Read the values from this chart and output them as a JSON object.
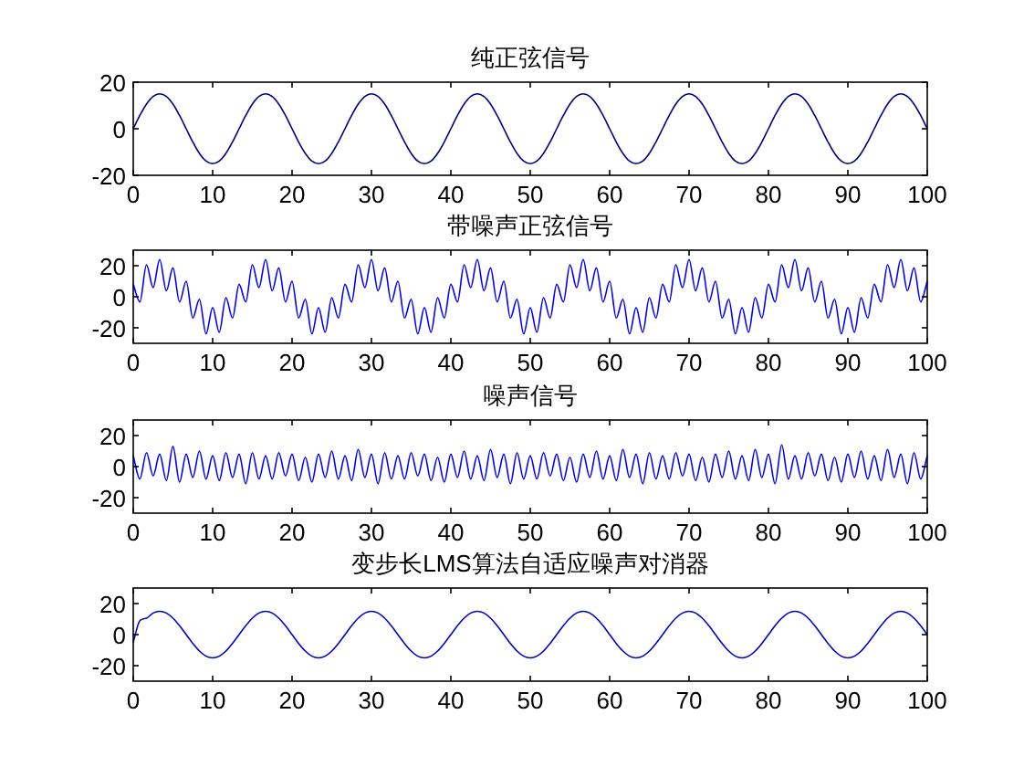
{
  "chart_data": [
    {
      "type": "line",
      "title": "纯正弦信号",
      "xlim": [
        0,
        100
      ],
      "ylim": [
        -20,
        20
      ],
      "xticks": [
        0,
        10,
        20,
        30,
        40,
        50,
        60,
        70,
        80,
        90,
        100
      ],
      "yticks": [
        -20,
        0,
        20
      ],
      "x": [
        0,
        0.83,
        1.67,
        2.5,
        3.33,
        4.17,
        5,
        5.83,
        6.67,
        7.5,
        8.33,
        9.17,
        10,
        10.83,
        11.67,
        12.5,
        13.33,
        14.17,
        15,
        15.83,
        16.67,
        17.5,
        18.33,
        19.17,
        20,
        20.83,
        21.67,
        22.5,
        23.33,
        24.17,
        25,
        25.83,
        26.67,
        27.5,
        28.33,
        29.17,
        30,
        30.83,
        31.67,
        32.5,
        33.33,
        34.17,
        35,
        35.83,
        36.67,
        37.5,
        38.33,
        39.17,
        40,
        40.83,
        41.67,
        42.5,
        43.33,
        44.17,
        45,
        45.83,
        46.67,
        47.5,
        48.33,
        49.17,
        50,
        50.83,
        51.67,
        52.5,
        53.33,
        54.17,
        55,
        55.83,
        56.67,
        57.5,
        58.33,
        59.17,
        60,
        60.83,
        61.67,
        62.5,
        63.33,
        64.17,
        65,
        65.83,
        66.67,
        67.5,
        68.33,
        69.17,
        70,
        70.83,
        71.67,
        72.5,
        73.33,
        74.17,
        75,
        75.83,
        76.67,
        77.5,
        78.33,
        79.17,
        80,
        80.83,
        81.67,
        82.5,
        83.33,
        84.17,
        85,
        85.83,
        86.67,
        87.5,
        88.33,
        89.17,
        90,
        90.83,
        91.67,
        92.5,
        93.33,
        94.17,
        95,
        95.83,
        96.67,
        97.5,
        98.33,
        99.17,
        100
      ],
      "series": [
        {
          "color": "#000080",
          "values": [
            0,
            5.7,
            10.6,
            13.9,
            15,
            13.9,
            10.6,
            5.7,
            0,
            -5.7,
            -10.6,
            -13.9,
            -15,
            -13.9,
            -10.6,
            -5.7,
            0,
            5.7,
            10.6,
            13.9,
            15,
            13.9,
            10.6,
            5.7,
            0,
            -5.7,
            -10.6,
            -13.9,
            -15,
            -13.9,
            -10.6,
            -5.7,
            0,
            5.7,
            10.6,
            13.9,
            15,
            13.9,
            10.6,
            5.7,
            0,
            -5.7,
            -10.6,
            -13.9,
            -15,
            -13.9,
            -10.6,
            -5.7,
            0,
            5.7,
            10.6,
            13.9,
            15,
            13.9,
            10.6,
            5.7,
            0,
            -5.7,
            -10.6,
            -13.9,
            -15,
            -13.9,
            -10.6,
            -5.7,
            0,
            5.7,
            10.6,
            13.9,
            15,
            13.9,
            10.6,
            5.7,
            0,
            -5.7,
            -10.6,
            -13.9,
            -15,
            -13.9,
            -10.6,
            -5.7,
            0,
            5.7,
            10.6,
            13.9,
            15,
            13.9,
            10.6,
            5.7,
            0,
            -5.7,
            -10.6,
            -13.9,
            -15,
            -13.9,
            -10.6,
            -5.7,
            0,
            5.7,
            10.6,
            13.9,
            15,
            13.9,
            10.6,
            5.7,
            0,
            -5.7,
            -10.6,
            -13.9,
            -15,
            -13.9,
            -10.6,
            -5.7,
            0,
            5.7,
            10.6,
            13.9,
            15,
            13.9,
            10.6,
            5.7,
            0
          ]
        }
      ]
    },
    {
      "type": "line",
      "title": "带噪声正弦信号",
      "xlim": [
        0,
        100
      ],
      "ylim": [
        -30,
        30
      ],
      "xticks": [
        0,
        10,
        20,
        30,
        40,
        50,
        60,
        70,
        80,
        90,
        100
      ],
      "yticks": [
        -20,
        0,
        20
      ],
      "x": [
        0,
        0.83,
        1.67,
        2.5,
        3.33,
        4.17,
        5,
        5.83,
        6.67,
        7.5,
        8.33,
        9.17,
        10,
        10.83,
        11.67,
        12.5,
        13.33,
        14.17,
        15,
        15.83,
        16.67,
        17.5,
        18.33,
        19.17,
        20,
        20.83,
        21.67,
        22.5,
        23.33,
        24.17,
        25,
        25.83,
        26.67,
        27.5,
        28.33,
        29.17,
        30,
        30.83,
        31.67,
        32.5,
        33.33,
        34.17,
        35,
        35.83,
        36.67,
        37.5,
        38.33,
        39.17,
        40,
        40.83,
        41.67,
        42.5,
        43.33,
        44.17,
        45,
        45.83,
        46.67,
        47.5,
        48.33,
        49.17,
        50,
        50.83,
        51.67,
        52.5,
        53.33,
        54.17,
        55,
        55.83,
        56.67,
        57.5,
        58.33,
        59.17,
        60,
        60.83,
        61.67,
        62.5,
        63.33,
        64.17,
        65,
        65.83,
        66.67,
        67.5,
        68.33,
        69.17,
        70,
        70.83,
        71.67,
        72.5,
        73.33,
        74.17,
        75,
        75.83,
        76.67,
        77.5,
        78.33,
        79.17,
        80,
        80.83,
        81.67,
        82.5,
        83.33,
        84.17,
        85,
        85.83,
        86.67,
        87.5,
        88.33,
        89.17,
        90,
        90.83,
        91.67,
        92.5,
        93.33,
        94.17,
        95,
        95.83,
        96.67,
        97.5,
        98.33,
        99.17,
        100
      ],
      "series": [
        {
          "color": "#0000ff",
          "values": [
            8,
            -3.3,
            20.6,
            5.9,
            24,
            3.9,
            18.6,
            -3.3,
            10,
            -13.7,
            -1.6,
            -23.9,
            -7,
            -22.9,
            -0.6,
            -13.7,
            8,
            -3.3,
            20.6,
            5.9,
            24,
            3.9,
            18.6,
            -3.3,
            10,
            -13.7,
            -1.6,
            -23.9,
            -7,
            -22.9,
            -0.6,
            -13.7,
            8,
            -3.3,
            20.6,
            5.9,
            24,
            3.9,
            18.6,
            -3.3,
            10,
            -13.7,
            -1.6,
            -23.9,
            -7,
            -22.9,
            -0.6,
            -13.7,
            8,
            -3.3,
            20.6,
            5.9,
            24,
            3.9,
            18.6,
            -3.3,
            10,
            -13.7,
            -1.6,
            -23.9,
            -7,
            -22.9,
            -0.6,
            -13.7,
            8,
            -3.3,
            20.6,
            5.9,
            24,
            3.9,
            18.6,
            -3.3,
            10,
            -13.7,
            -1.6,
            -23.9,
            -7,
            -22.9,
            -0.6,
            -13.7,
            8,
            -3.3,
            20.6,
            5.9,
            24,
            3.9,
            18.6,
            -3.3,
            10,
            -13.7,
            -1.6,
            -23.9,
            -7,
            -22.9,
            -0.6,
            -13.7,
            8,
            -3.3,
            20.6,
            5.9,
            24,
            3.9,
            18.6,
            -3.3,
            10,
            -13.7,
            -1.6,
            -23.9,
            -7,
            -22.9,
            -0.6,
            -13.7,
            8,
            -3.3,
            20.6,
            5.9,
            24,
            3.9,
            18.6,
            -3.3,
            10
          ]
        }
      ]
    },
    {
      "type": "line",
      "title": "噪声信号",
      "xlim": [
        0,
        100
      ],
      "ylim": [
        -30,
        30
      ],
      "xticks": [
        0,
        10,
        20,
        30,
        40,
        50,
        60,
        70,
        80,
        90,
        100
      ],
      "yticks": [
        -20,
        0,
        20
      ],
      "x": [
        0,
        0.83,
        1.67,
        2.5,
        3.33,
        4.17,
        5,
        5.83,
        6.67,
        7.5,
        8.33,
        9.17,
        10,
        10.83,
        11.67,
        12.5,
        13.33,
        14.17,
        15,
        15.83,
        16.67,
        17.5,
        18.33,
        19.17,
        20,
        20.83,
        21.67,
        22.5,
        23.33,
        24.17,
        25,
        25.83,
        26.67,
        27.5,
        28.33,
        29.17,
        30,
        30.83,
        31.67,
        32.5,
        33.33,
        34.17,
        35,
        35.83,
        36.67,
        37.5,
        38.33,
        39.17,
        40,
        40.83,
        41.67,
        42.5,
        43.33,
        44.17,
        45,
        45.83,
        46.67,
        47.5,
        48.33,
        49.17,
        50,
        50.83,
        51.67,
        52.5,
        53.33,
        54.17,
        55,
        55.83,
        56.67,
        57.5,
        58.33,
        59.17,
        60,
        60.83,
        61.67,
        62.5,
        63.33,
        64.17,
        65,
        65.83,
        66.67,
        67.5,
        68.33,
        69.17,
        70,
        70.83,
        71.67,
        72.5,
        73.33,
        74.17,
        75,
        75.83,
        76.67,
        77.5,
        78.33,
        79.17,
        80,
        80.83,
        81.67,
        82.5,
        83.33,
        84.17,
        85,
        85.83,
        86.67,
        87.5,
        88.33,
        89.17,
        90,
        90.83,
        91.67,
        92.5,
        93.33,
        94.17,
        95,
        95.83,
        96.67,
        97.5,
        98.33,
        99.17,
        100
      ],
      "series": [
        {
          "color": "#0000ff",
          "values": [
            7,
            -8,
            9,
            -6,
            8,
            -9,
            13,
            -10,
            8,
            -7,
            10,
            -8,
            7,
            -9,
            9,
            -7,
            8,
            -11,
            9,
            -8,
            7,
            -8,
            9,
            -6,
            8,
            -9,
            6,
            -10,
            8,
            -7,
            10,
            -8,
            7,
            -9,
            11,
            -7,
            8,
            -11,
            9,
            -8,
            7,
            -8,
            9,
            -6,
            8,
            -9,
            6,
            -10,
            8,
            -7,
            10,
            -8,
            7,
            -9,
            11,
            -7,
            8,
            -11,
            9,
            -8,
            7,
            -8,
            9,
            -6,
            8,
            -9,
            6,
            -10,
            8,
            -7,
            10,
            -8,
            7,
            -9,
            11,
            -7,
            8,
            -11,
            9,
            -8,
            7,
            -8,
            9,
            -6,
            8,
            -9,
            6,
            -10,
            8,
            -7,
            10,
            -8,
            7,
            -9,
            11,
            -7,
            8,
            -11,
            14,
            -8,
            7,
            -8,
            9,
            -6,
            8,
            -9,
            6,
            -10,
            8,
            -7,
            10,
            -8,
            7,
            -9,
            11,
            -7,
            8,
            -11,
            9,
            -8,
            7
          ]
        }
      ]
    },
    {
      "type": "line",
      "title": "变步长LMS算法自适应噪声对消器",
      "xlim": [
        0,
        100
      ],
      "ylim": [
        -30,
        30
      ],
      "xticks": [
        0,
        10,
        20,
        30,
        40,
        50,
        60,
        70,
        80,
        90,
        100
      ],
      "yticks": [
        -20,
        0,
        20
      ],
      "x": [
        0,
        0.83,
        1.67,
        2.5,
        3.33,
        4.17,
        5,
        5.83,
        6.67,
        7.5,
        8.33,
        9.17,
        10,
        10.83,
        11.67,
        12.5,
        13.33,
        14.17,
        15,
        15.83,
        16.67,
        17.5,
        18.33,
        19.17,
        20,
        20.83,
        21.67,
        22.5,
        23.33,
        24.17,
        25,
        25.83,
        26.67,
        27.5,
        28.33,
        29.17,
        30,
        30.83,
        31.67,
        32.5,
        33.33,
        34.17,
        35,
        35.83,
        36.67,
        37.5,
        38.33,
        39.17,
        40,
        40.83,
        41.67,
        42.5,
        43.33,
        44.17,
        45,
        45.83,
        46.67,
        47.5,
        48.33,
        49.17,
        50,
        50.83,
        51.67,
        52.5,
        53.33,
        54.17,
        55,
        55.83,
        56.67,
        57.5,
        58.33,
        59.17,
        60,
        60.83,
        61.67,
        62.5,
        63.33,
        64.17,
        65,
        65.83,
        66.67,
        67.5,
        68.33,
        69.17,
        70,
        70.83,
        71.67,
        72.5,
        73.33,
        74.17,
        75,
        75.83,
        76.67,
        77.5,
        78.33,
        79.17,
        80,
        80.83,
        81.67,
        82.5,
        83.33,
        84.17,
        85,
        85.83,
        86.67,
        87.5,
        88.33,
        89.17,
        90,
        90.83,
        91.67,
        92.5,
        93.33,
        94.17,
        95,
        95.83,
        96.67,
        97.5,
        98.33,
        99.17,
        100
      ],
      "series": [
        {
          "color": "#0000cc",
          "values": [
            -5,
            9,
            10.6,
            13.9,
            15,
            13.9,
            10.6,
            5.7,
            0,
            -5.7,
            -10.6,
            -13.9,
            -15,
            -13.9,
            -10.6,
            -5.7,
            0,
            5.7,
            10.6,
            13.9,
            15,
            13.9,
            10.6,
            5.7,
            0,
            -5.7,
            -10.6,
            -13.9,
            -15,
            -13.9,
            -10.6,
            -5.7,
            0,
            5.7,
            10.6,
            13.9,
            15,
            13.9,
            10.6,
            5.7,
            0,
            -5.7,
            -10.6,
            -13.9,
            -15,
            -13.9,
            -10.6,
            -5.7,
            0,
            5.7,
            10.6,
            13.9,
            15,
            13.9,
            10.6,
            5.7,
            0,
            -5.7,
            -10.6,
            -13.9,
            -15,
            -13.9,
            -10.6,
            -5.7,
            0,
            5.7,
            10.6,
            13.9,
            15,
            13.9,
            10.6,
            5.7,
            0,
            -5.7,
            -10.6,
            -13.9,
            -15,
            -13.9,
            -10.6,
            -5.7,
            0,
            5.7,
            10.6,
            13.9,
            15,
            13.9,
            10.6,
            5.7,
            0,
            -5.7,
            -10.6,
            -13.9,
            -15,
            -13.9,
            -10.6,
            -5.7,
            0,
            5.7,
            10.6,
            13.9,
            15,
            13.9,
            10.6,
            5.7,
            0,
            -5.7,
            -10.6,
            -13.9,
            -15,
            -13.9,
            -10.6,
            -5.7,
            0,
            5.7,
            10.6,
            13.9,
            15,
            13.9,
            10.6,
            5.7,
            0
          ]
        }
      ]
    }
  ]
}
